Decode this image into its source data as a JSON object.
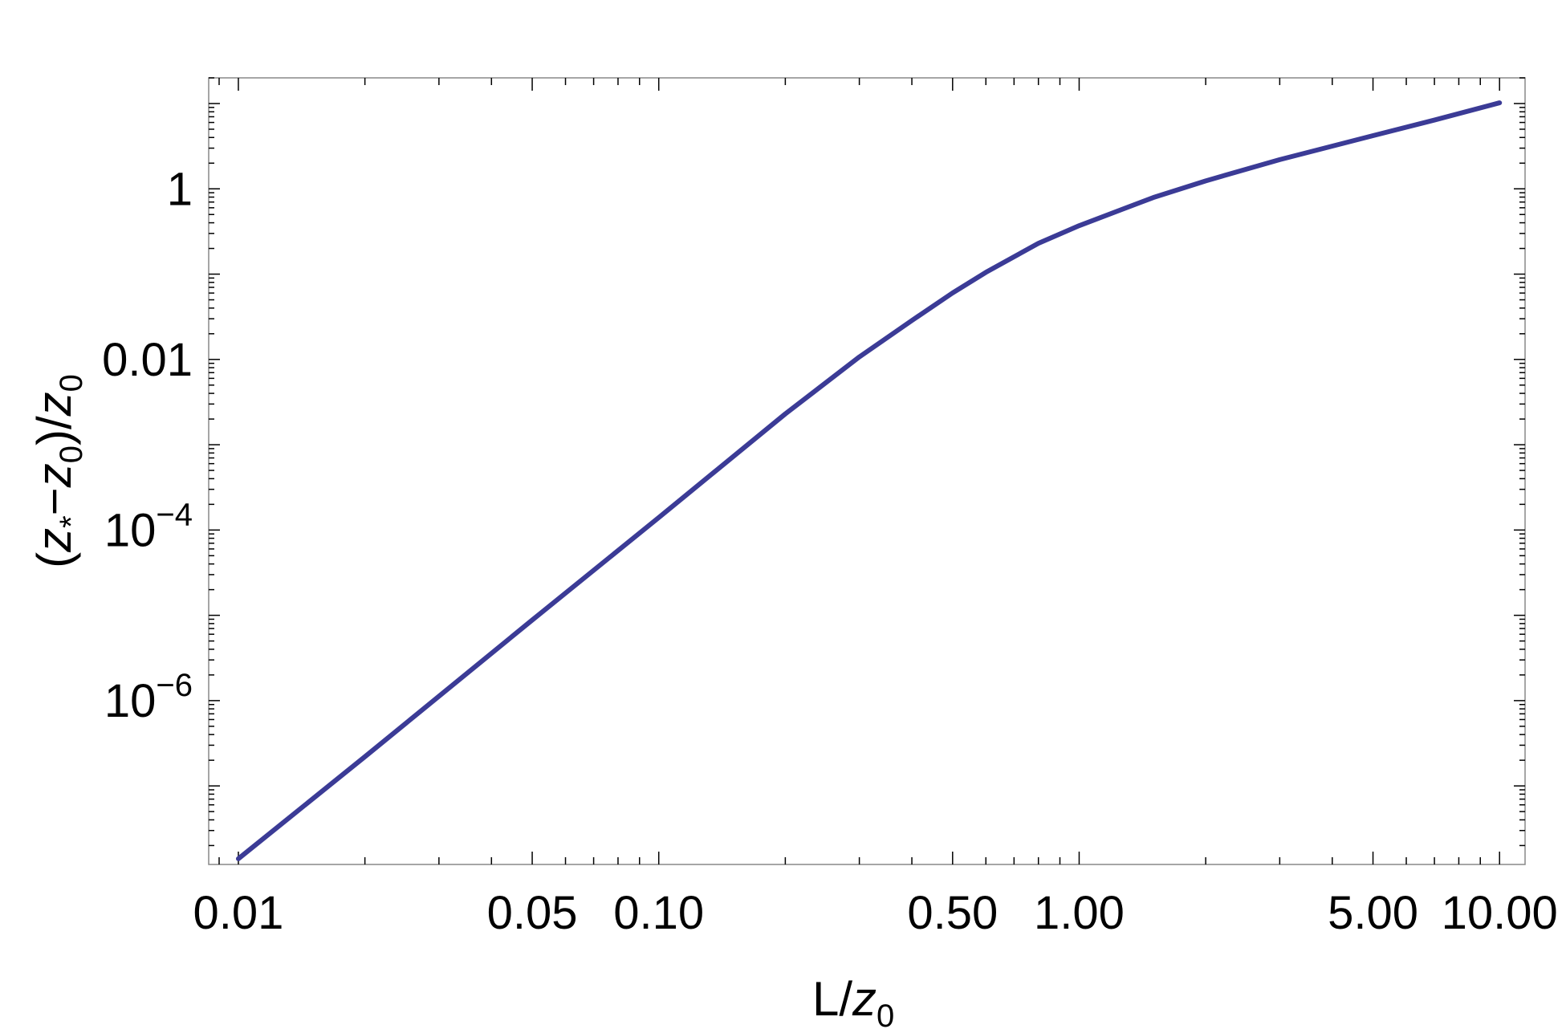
{
  "chart_data": {
    "type": "line",
    "xlabel_main": "L/",
    "xlabel_var": "z",
    "xlabel_sub": "0",
    "ylabel": {
      "open": "(",
      "var1": "z",
      "sub1": "*",
      "minus": "−",
      "var2": "z",
      "sub2": "0",
      "close": ")/",
      "var3": "z",
      "sub3": "0"
    },
    "x_scale": "log",
    "y_scale": "log",
    "xlim": [
      0.0085,
      11.5
    ],
    "ylim": [
      1.2e-08,
      20
    ],
    "x_ticks": [
      {
        "value": 0.01,
        "label": "0.01"
      },
      {
        "value": 0.05,
        "label": "0.05"
      },
      {
        "value": 0.1,
        "label": "0.10"
      },
      {
        "value": 0.5,
        "label": "0.50"
      },
      {
        "value": 1,
        "label": "1.00"
      },
      {
        "value": 5,
        "label": "5.00"
      },
      {
        "value": 10,
        "label": "10.00"
      }
    ],
    "y_ticks": [
      {
        "value": 1,
        "base": "1",
        "exp": ""
      },
      {
        "value": 0.01,
        "base": "0.01",
        "exp": ""
      },
      {
        "value": 0.0001,
        "base": "10",
        "exp": "−4"
      },
      {
        "value": 1e-06,
        "base": "10",
        "exp": "−6"
      }
    ],
    "grid": false,
    "series": [
      {
        "color": "#3b3b96",
        "x": [
          0.01,
          0.02,
          0.05,
          0.1,
          0.2,
          0.3,
          0.4,
          0.5,
          0.6,
          0.8,
          1.0,
          1.5,
          2.0,
          3.0,
          5.0,
          7.0,
          10.0
        ],
        "y": [
          1.4e-08,
          2.2e-07,
          8.8e-06,
          0.00014,
          0.0023,
          0.0107,
          0.0286,
          0.0602,
          0.105,
          0.23,
          0.37,
          0.79,
          1.24,
          2.2,
          4.2,
          6.4,
          10.2
        ]
      }
    ]
  }
}
